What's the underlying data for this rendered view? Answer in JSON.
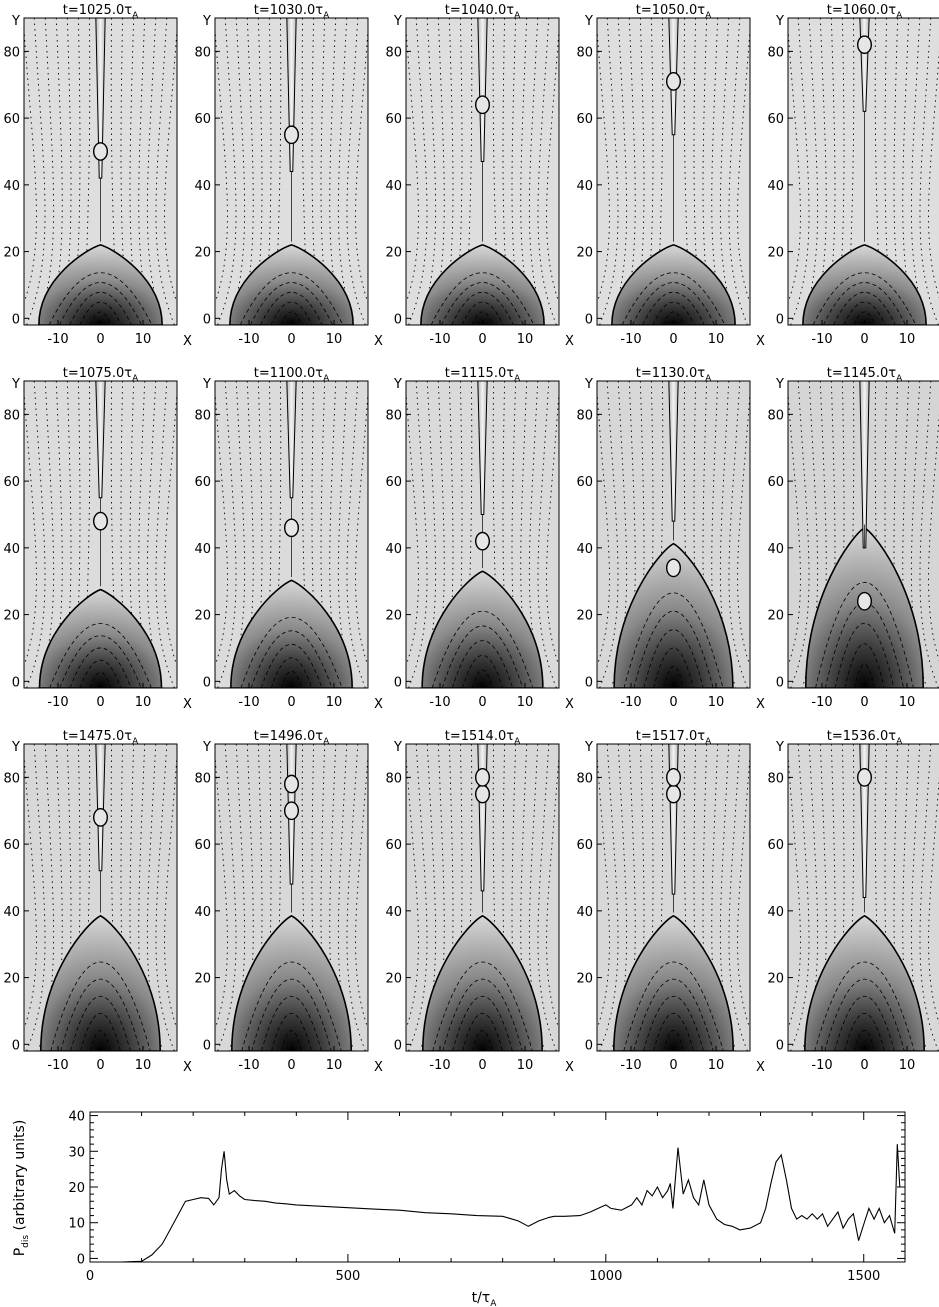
{
  "panels": {
    "x_axis_name": "X",
    "y_axis_name": "Y",
    "x_tick_labels": [
      "-10",
      "0",
      "10"
    ],
    "y_tick_labels": [
      "0",
      "20",
      "40",
      "60",
      "80"
    ],
    "time_prefix": "t=",
    "time_unit_symbol": "τ",
    "time_unit_subscript": "A",
    "items": [
      {
        "time": "1025.0",
        "top": 90,
        "jet_bottom": 42,
        "plasmoids": [
          50
        ],
        "gray": 0.0
      },
      {
        "time": "1030.0",
        "top": 89,
        "jet_bottom": 44,
        "plasmoids": [
          55
        ],
        "gray": 0.0
      },
      {
        "time": "1040.0",
        "top": 88,
        "jet_bottom": 47,
        "plasmoids": [
          64
        ],
        "gray": 0.0
      },
      {
        "time": "1050.0",
        "top": 87,
        "jet_bottom": 55,
        "plasmoids": [
          71
        ],
        "gray": 0.0
      },
      {
        "time": "1060.0",
        "top": 86,
        "jet_bottom": 62,
        "plasmoids": [
          82
        ],
        "gray": 0.0
      },
      {
        "time": "1075.0",
        "top": 90,
        "jet_bottom": 55,
        "plasmoids": [
          48
        ],
        "gray": 0.1
      },
      {
        "time": "1100.0",
        "top": 90,
        "jet_bottom": 55,
        "plasmoids": [
          46
        ],
        "gray": 0.15
      },
      {
        "time": "1115.0",
        "top": 92,
        "jet_bottom": 50,
        "plasmoids": [
          42
        ],
        "gray": 0.2
      },
      {
        "time": "1130.0",
        "top": 96,
        "jet_bottom": 48,
        "plasmoids": [
          34
        ],
        "gray": 0.35
      },
      {
        "time": "1145.0",
        "top": 100,
        "jet_bottom": 40,
        "plasmoids": [
          24
        ],
        "gray": 0.45
      },
      {
        "time": "1475.0",
        "top": 130,
        "jet_bottom": 52,
        "plasmoids": [
          68
        ],
        "gray": 0.3
      },
      {
        "time": "1496.0",
        "top": 128,
        "jet_bottom": 48,
        "plasmoids": [
          70,
          78
        ],
        "gray": 0.3
      },
      {
        "time": "1514.0",
        "top": 124,
        "jet_bottom": 46,
        "plasmoids": [
          75,
          80
        ],
        "gray": 0.3
      },
      {
        "time": "1517.0",
        "top": 122,
        "jet_bottom": 45,
        "plasmoids": [
          75,
          80
        ],
        "gray": 0.3
      },
      {
        "time": "1536.0",
        "top": 120,
        "jet_bottom": 44,
        "plasmoids": [
          80
        ],
        "gray": 0.3
      }
    ]
  },
  "chart_data": {
    "type": "line",
    "xlabel_main": "t/τ",
    "xlabel_sub": "A",
    "ylabel_main": "P",
    "ylabel_sub": "dis",
    "ylabel_rest": " (arbitrary units)",
    "xlim": [
      0,
      1580
    ],
    "ylim": [
      -1,
      41
    ],
    "x_ticks": [
      0,
      500,
      1000,
      1500
    ],
    "y_ticks": [
      0,
      10,
      20,
      30,
      40
    ],
    "series": [
      {
        "x": [
          0,
          60,
          100,
          120,
          140,
          155,
          170,
          185,
          200,
          215,
          230,
          240,
          250,
          255,
          260,
          265,
          270,
          280,
          290,
          300,
          320,
          340,
          360,
          380,
          400,
          450,
          500,
          550,
          600,
          650,
          700,
          750,
          800,
          830,
          850,
          870,
          890,
          900,
          920,
          950,
          970,
          985,
          1000,
          1010,
          1030,
          1050,
          1060,
          1070,
          1080,
          1090,
          1100,
          1110,
          1120,
          1125,
          1130,
          1140,
          1150,
          1160,
          1170,
          1180,
          1190,
          1200,
          1215,
          1230,
          1245,
          1260,
          1280,
          1300,
          1310,
          1320,
          1330,
          1340,
          1350,
          1360,
          1370,
          1380,
          1390,
          1400,
          1410,
          1420,
          1430,
          1440,
          1450,
          1460,
          1470,
          1480,
          1490,
          1500,
          1510,
          1520,
          1530,
          1540,
          1550,
          1560,
          1565,
          1570
        ],
        "y": [
          -1,
          -1,
          -0.8,
          1,
          4,
          8,
          12,
          16,
          16.5,
          17,
          16.8,
          15,
          17,
          25,
          30,
          22,
          18,
          19,
          17.5,
          16.5,
          16.2,
          16,
          15.5,
          15.3,
          15,
          14.6,
          14.2,
          13.8,
          13.5,
          12.8,
          12.5,
          12,
          11.8,
          10.5,
          9,
          10.5,
          11.5,
          11.8,
          11.8,
          12,
          13,
          14,
          15,
          14,
          13.5,
          15,
          17,
          15,
          19,
          17.5,
          20,
          17,
          19,
          21,
          14,
          31,
          18,
          22,
          17,
          15,
          22,
          15,
          11,
          9.5,
          9,
          8,
          8.5,
          10,
          14,
          21,
          27,
          29,
          22,
          14,
          11,
          12,
          11,
          12.5,
          11,
          12.5,
          9,
          11,
          13,
          8.5,
          11,
          12.5,
          5,
          9.5,
          14,
          11,
          14,
          10,
          12,
          7,
          32,
          20
        ]
      }
    ]
  }
}
